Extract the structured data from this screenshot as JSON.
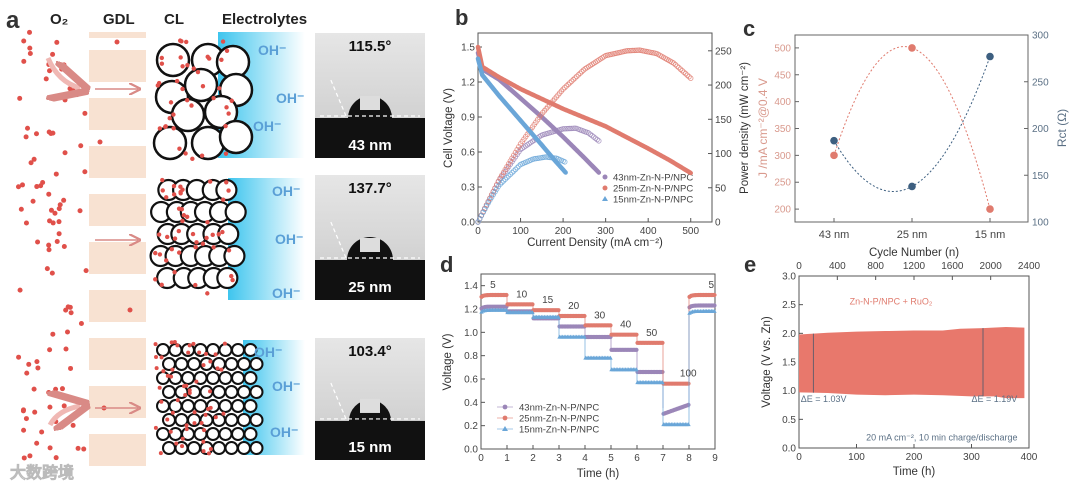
{
  "panel_labels": {
    "a": "a",
    "b": "b",
    "c": "c",
    "d": "d",
    "e": "e"
  },
  "panel_a": {
    "headers": {
      "o2": "O₂",
      "gdl": "GDL",
      "cl": "CL",
      "electrolytes": "Electrolytes"
    },
    "ion_label": "OH⁻",
    "rows": [
      {
        "angle": "115.5°",
        "size": "43 nm"
      },
      {
        "angle": "137.7°",
        "size": "25 nm"
      },
      {
        "angle": "103.4°",
        "size": "15 nm"
      }
    ],
    "colors": {
      "o2_dot": "#e0504a",
      "gdl": "#f8e2d2",
      "electrolyte": "#3ec5ee",
      "ion": "#5a9fd6"
    }
  },
  "watermark": "大数跨境",
  "chart_data": [
    {
      "id": "b",
      "type": "line",
      "xlabel": "Current Density (mA cm⁻²)",
      "ylabel": "Cell Voltage (V)",
      "y2label": "Power density (mW cm⁻²)",
      "xlim": [
        0,
        550
      ],
      "ylim": [
        0,
        1.62
      ],
      "y2lim": [
        0,
        276
      ],
      "xticks": [
        0,
        100,
        200,
        300,
        400,
        500
      ],
      "yticks": [
        0.0,
        0.3,
        0.6,
        0.9,
        1.2,
        1.5
      ],
      "y2ticks": [
        0,
        50,
        100,
        150,
        200,
        250
      ],
      "legend_position": "bottom-right",
      "series": [
        {
          "name": "43nm-Zn-N-P/NPC",
          "color": "#9b86b8",
          "marker": "circle",
          "voltage": [
            [
              0,
              1.45
            ],
            [
              10,
              1.31
            ],
            [
              50,
              1.22
            ],
            [
              100,
              1.06
            ],
            [
              150,
              0.9
            ],
            [
              200,
              0.73
            ],
            [
              250,
              0.55
            ],
            [
              285,
              0.42
            ]
          ],
          "power": [
            [
              0,
              0
            ],
            [
              25,
              31
            ],
            [
              50,
              61
            ],
            [
              100,
              106
            ],
            [
              150,
              127
            ],
            [
              200,
              136
            ],
            [
              230,
              137
            ],
            [
              260,
              130
            ],
            [
              285,
              118
            ]
          ]
        },
        {
          "name": "25nm-Zn-N-P/NPC",
          "color": "#e07b6e",
          "marker": "circle",
          "voltage": [
            [
              0,
              1.5
            ],
            [
              10,
              1.33
            ],
            [
              50,
              1.24
            ],
            [
              100,
              1.14
            ],
            [
              200,
              0.97
            ],
            [
              300,
              0.82
            ],
            [
              400,
              0.63
            ],
            [
              450,
              0.53
            ],
            [
              500,
              0.42
            ]
          ],
          "power": [
            [
              0,
              0
            ],
            [
              50,
              62
            ],
            [
              100,
              114
            ],
            [
              150,
              158
            ],
            [
              200,
              194
            ],
            [
              250,
              223
            ],
            [
              300,
              243
            ],
            [
              350,
              250
            ],
            [
              380,
              251
            ],
            [
              420,
              246
            ],
            [
              460,
              232
            ],
            [
              500,
              210
            ]
          ]
        },
        {
          "name": "15nm-Zn-N-P/NPC",
          "color": "#6aa6d8",
          "marker": "triangle",
          "voltage": [
            [
              0,
              1.4
            ],
            [
              10,
              1.26
            ],
            [
              50,
              1.08
            ],
            [
              100,
              0.87
            ],
            [
              150,
              0.66
            ],
            [
              180,
              0.53
            ],
            [
              207,
              0.42
            ]
          ],
          "power": [
            [
              0,
              0
            ],
            [
              25,
              29
            ],
            [
              50,
              54
            ],
            [
              100,
              84
            ],
            [
              130,
              92
            ],
            [
              160,
              95
            ],
            [
              185,
              93
            ],
            [
              207,
              87
            ]
          ]
        }
      ]
    },
    {
      "id": "c",
      "type": "scatter",
      "categories": [
        "43 nm",
        "25 nm",
        "15 nm"
      ],
      "ylabel": "J /mA cm⁻²@0.4 V",
      "y2label": "Rct (Ω)",
      "ylim": [
        176,
        524
      ],
      "y2lim": [
        100,
        300
      ],
      "yticks": [
        200,
        250,
        300,
        350,
        400,
        450,
        500
      ],
      "y2ticks": [
        100,
        150,
        200,
        250,
        300
      ],
      "series": [
        {
          "name": "J @0.4 V",
          "axis": "left",
          "color": "#e07b6e",
          "values": [
            300,
            500,
            200
          ]
        },
        {
          "name": "Rct",
          "axis": "right",
          "color": "#3d5f80",
          "values": [
            187,
            138,
            277
          ]
        }
      ],
      "left_axis_color": "#d99a8e",
      "right_axis_color": "#5b7085"
    },
    {
      "id": "d",
      "type": "line",
      "xlabel": "Time (h)",
      "ylabel": "Voltage (V)",
      "xlim": [
        0,
        9
      ],
      "ylim": [
        0,
        1.5
      ],
      "xticks": [
        0,
        1,
        2,
        3,
        4,
        5,
        6,
        7,
        8,
        9
      ],
      "yticks": [
        0.0,
        0.2,
        0.4,
        0.6,
        0.8,
        1.0,
        1.2,
        1.4
      ],
      "step_labels": [
        "5",
        "10",
        "15",
        "20",
        "30",
        "40",
        "50",
        "100",
        "5"
      ],
      "legend_position": "bottom-left",
      "series": [
        {
          "name": "43nm-Zn-N-P/NPC",
          "color": "#9b86b8",
          "marker": "circle",
          "steps": [
            1.22,
            1.18,
            1.12,
            1.05,
            0.96,
            0.85,
            0.66,
            0.35,
            1.23
          ]
        },
        {
          "name": "25nm-Zn-N-P/NPC",
          "color": "#e07b6e",
          "marker": "circle",
          "steps": [
            1.32,
            1.24,
            1.19,
            1.14,
            1.06,
            0.98,
            0.91,
            0.56,
            1.32
          ]
        },
        {
          "name": "15nm-Zn-N-P/NPC",
          "color": "#6aa6d8",
          "marker": "triangle",
          "steps": [
            1.19,
            1.17,
            1.13,
            0.96,
            0.78,
            0.68,
            0.57,
            0.21,
            1.18
          ]
        }
      ]
    },
    {
      "id": "e",
      "type": "area",
      "xlabel": "Time (h)",
      "ylabel": "Voltage (V  vs. Zn)",
      "x2label": "Cycle Number (n)",
      "xlim": [
        0,
        400
      ],
      "ylim": [
        0,
        3
      ],
      "x2lim": [
        0,
        2400
      ],
      "xticks": [
        0,
        100,
        200,
        300,
        400
      ],
      "yticks": [
        0.0,
        0.5,
        1.0,
        1.5,
        2.0,
        2.5,
        3.0
      ],
      "x2ticks": [
        0,
        400,
        800,
        1200,
        1600,
        2000,
        2400
      ],
      "series_label": "Zn-N-P/NPC + RuO₂",
      "color": "#e8786c",
      "upper": [
        [
          0,
          1.98
        ],
        [
          50,
          2.01
        ],
        [
          100,
          2.03
        ],
        [
          150,
          2.04
        ],
        [
          200,
          2.05
        ],
        [
          250,
          2.05
        ],
        [
          280,
          2.08
        ],
        [
          320,
          2.09
        ],
        [
          360,
          2.11
        ],
        [
          392,
          2.1
        ]
      ],
      "lower": [
        [
          0,
          0.97
        ],
        [
          50,
          0.96
        ],
        [
          100,
          0.93
        ],
        [
          150,
          0.92
        ],
        [
          200,
          0.93
        ],
        [
          250,
          0.92
        ],
        [
          300,
          0.9
        ],
        [
          340,
          0.9
        ],
        [
          360,
          0.87
        ],
        [
          392,
          0.87
        ]
      ],
      "annotations": [
        {
          "x": 25,
          "text": "ΔE = 1.03V"
        },
        {
          "x": 320,
          "text": "ΔE = 1.19V"
        }
      ],
      "condition": "20 mA cm⁻²,  10 min charge/discharge"
    }
  ]
}
